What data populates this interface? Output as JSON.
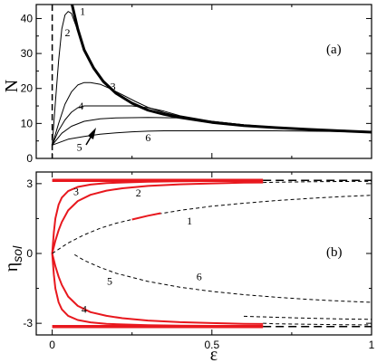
{
  "colors": {
    "red": "#e8181e",
    "black": "#000000"
  },
  "chart_data": [
    {
      "type": "line",
      "panel_label": "(a)",
      "ylabel": "N",
      "xlim": [
        -0.05,
        1.0
      ],
      "ylim": [
        0,
        44
      ],
      "xticks": [
        0,
        0.5,
        1
      ],
      "yticks": [
        0,
        10,
        20,
        30,
        40
      ],
      "ytick_labels": [
        "0",
        "10",
        "20",
        "30",
        "40"
      ],
      "vline_dashed_x": 0,
      "series": [
        {
          "label": "1",
          "thick": true,
          "x": [
            0.062,
            0.08,
            0.1,
            0.13,
            0.16,
            0.2,
            0.25,
            0.3,
            0.35,
            0.4,
            0.5,
            0.6,
            0.7,
            0.8,
            0.9,
            1.0
          ],
          "y": [
            44,
            37.0,
            31.0,
            25.8,
            22.0,
            18.6,
            15.8,
            13.8,
            12.6,
            11.7,
            10.3,
            9.4,
            8.8,
            8.3,
            7.9,
            7.5
          ]
        },
        {
          "label": "2",
          "x": [
            0,
            0.01,
            0.02,
            0.03,
            0.04,
            0.05,
            0.06,
            0.07,
            0.08,
            0.1,
            0.13,
            0.16,
            0.2,
            0.25,
            0.3,
            0.4,
            0.5,
            0.6,
            0.7,
            0.8,
            0.9,
            1.0
          ],
          "y": [
            3.8,
            16,
            28,
            37,
            41,
            42,
            41.5,
            39,
            36.5,
            31.5,
            26,
            22,
            18.6,
            15.8,
            13.8,
            11.7,
            10.3,
            9.4,
            8.8,
            8.3,
            7.9,
            7.6
          ]
        },
        {
          "label": "3",
          "x": [
            0,
            0.02,
            0.04,
            0.06,
            0.08,
            0.1,
            0.12,
            0.15,
            0.18,
            0.22,
            0.26,
            0.3,
            0.35,
            0.4,
            0.5,
            0.6,
            0.7,
            0.8,
            0.9,
            1.0
          ],
          "y": [
            3.8,
            10,
            15.5,
            19,
            21,
            21.7,
            21.7,
            21.2,
            20,
            18.2,
            16.3,
            14.6,
            13.1,
            12.0,
            10.5,
            9.5,
            8.8,
            8.3,
            7.9,
            7.6
          ]
        },
        {
          "label": "4",
          "x": [
            0,
            0.02,
            0.04,
            0.06,
            0.08,
            0.1,
            0.15,
            0.2,
            0.25,
            0.3,
            0.35,
            0.4,
            0.5,
            0.6,
            0.7,
            0.8,
            0.9,
            1.0
          ],
          "y": [
            3.8,
            8,
            11,
            13.2,
            14.5,
            15,
            15,
            15,
            15,
            14.5,
            13.5,
            12.2,
            10.6,
            9.6,
            8.9,
            8.4,
            8.0,
            7.7
          ]
        },
        {
          "label": "5",
          "x": [
            0,
            0.03,
            0.06,
            0.1,
            0.15,
            0.2,
            0.3,
            0.4,
            0.5,
            0.6,
            0.7,
            0.8,
            0.9,
            1.0
          ],
          "y": [
            3.8,
            7.2,
            9.2,
            10.6,
            11.3,
            11.6,
            11.7,
            11.6,
            10.6,
            9.6,
            8.9,
            8.4,
            8.0,
            7.7
          ]
        },
        {
          "label": "6",
          "x": [
            0,
            0.05,
            0.1,
            0.15,
            0.2,
            0.25,
            0.3,
            0.35,
            0.4,
            0.5,
            0.6,
            0.7,
            0.8,
            0.9,
            1.0
          ],
          "y": [
            3.8,
            5.5,
            6.3,
            6.9,
            7.3,
            7.6,
            7.8,
            7.9,
            7.9,
            7.9,
            7.9,
            7.9,
            7.8,
            7.7,
            7.6
          ]
        }
      ],
      "annotations": [
        {
          "text": "1",
          "x": 0.095,
          "y": 41
        },
        {
          "text": "2",
          "x": 0.048,
          "y": 35
        },
        {
          "text": "3",
          "x": 0.19,
          "y": 19.5
        },
        {
          "text": "4",
          "x": 0.09,
          "y": 14
        },
        {
          "text": "5",
          "x": 0.085,
          "y": 2.2
        },
        {
          "text": "6",
          "x": 0.3,
          "y": 4.9
        }
      ]
    },
    {
      "type": "line",
      "panel_label": "(b)",
      "ylabel": "η_sol",
      "xlabel": "ε",
      "xlim": [
        -0.05,
        1.0
      ],
      "ylim": [
        -3.5,
        3.5
      ],
      "xticks": [
        0,
        0.5,
        1
      ],
      "xtick_labels": [
        "0",
        "0.5",
        "1"
      ],
      "yticks": [
        -3,
        0,
        3
      ],
      "ytick_labels": [
        "-3",
        "0",
        "3"
      ],
      "series": [
        {
          "label": "top-red-line",
          "color": "red",
          "width": 3.5,
          "x": [
            0,
            0.66
          ],
          "y": [
            3.14,
            3.14
          ]
        },
        {
          "label": "top-dashed-line",
          "dashed": true,
          "width": 1.5,
          "x": [
            0.66,
            1.0
          ],
          "y": [
            3.14,
            3.14
          ]
        },
        {
          "label": "bottom-red-line",
          "color": "red",
          "width": 3.5,
          "x": [
            0,
            0.66
          ],
          "y": [
            -3.14,
            -3.14
          ]
        },
        {
          "label": "bottom-dashed-line",
          "dashed": true,
          "width": 1.5,
          "x": [
            0.66,
            1.0
          ],
          "y": [
            -3.14,
            -3.14
          ]
        },
        {
          "label": "3",
          "color": "red",
          "width": 2,
          "x": [
            0,
            0.005,
            0.01,
            0.02,
            0.03,
            0.05,
            0.08,
            0.12,
            0.17,
            0.22,
            0.3,
            0.4,
            0.5,
            0.6,
            0.66
          ],
          "y": [
            0,
            0.9,
            1.5,
            2.1,
            2.4,
            2.68,
            2.86,
            2.96,
            3.02,
            3.05,
            3.08,
            3.1,
            3.11,
            3.12,
            3.12
          ]
        },
        {
          "label": "2",
          "color": "red",
          "width": 2,
          "x": [
            0,
            0.01,
            0.02,
            0.03,
            0.05,
            0.08,
            0.12,
            0.17,
            0.22,
            0.3,
            0.4,
            0.5,
            0.6,
            0.66
          ],
          "y": [
            0,
            0.55,
            1.0,
            1.35,
            1.85,
            2.25,
            2.52,
            2.7,
            2.8,
            2.9,
            2.97,
            3.01,
            3.04,
            3.05
          ]
        },
        {
          "label": "3-lower",
          "color": "red",
          "width": 2,
          "x": [
            0,
            0.005,
            0.01,
            0.02,
            0.03,
            0.05,
            0.08,
            0.12,
            0.17,
            0.22,
            0.3,
            0.4,
            0.5,
            0.6,
            0.66
          ],
          "y": [
            0,
            -0.9,
            -1.5,
            -2.1,
            -2.4,
            -2.68,
            -2.86,
            -2.96,
            -3.02,
            -3.05,
            -3.08,
            -3.1,
            -3.11,
            -3.12,
            -3.12
          ]
        },
        {
          "label": "5",
          "color": "red",
          "width": 2,
          "x": [
            0,
            0.01,
            0.02,
            0.03,
            0.05,
            0.08,
            0.12,
            0.17,
            0.22,
            0.3,
            0.4,
            0.5,
            0.6,
            0.66
          ],
          "y": [
            0,
            -0.55,
            -1.0,
            -1.35,
            -1.85,
            -2.25,
            -2.52,
            -2.68,
            -2.78,
            -2.88,
            -2.95,
            -2.99,
            -3.02,
            -3.03
          ]
        },
        {
          "label": "1",
          "dashed": true,
          "width": 1,
          "x": [
            0,
            0.05,
            0.1,
            0.15,
            0.2,
            0.3,
            0.4,
            0.5,
            0.6,
            0.7,
            0.8,
            0.9,
            1.0
          ],
          "y": [
            0,
            0.45,
            0.8,
            1.08,
            1.3,
            1.62,
            1.85,
            2.03,
            2.16,
            2.27,
            2.36,
            2.44,
            2.5
          ]
        },
        {
          "label": "1-red-segment",
          "color": "red",
          "width": 2,
          "x": [
            0.25,
            0.3,
            0.34
          ],
          "y": [
            1.46,
            1.62,
            1.73
          ]
        },
        {
          "label": "6",
          "dashed": true,
          "width": 1,
          "x": [
            0.07,
            0.1,
            0.15,
            0.2,
            0.3,
            0.4,
            0.5,
            0.6,
            0.7,
            0.8,
            0.9,
            1.0
          ],
          "y": [
            -0.05,
            -0.3,
            -0.6,
            -0.85,
            -1.2,
            -1.45,
            -1.63,
            -1.77,
            -1.88,
            -1.97,
            -2.04,
            -2.1
          ]
        },
        {
          "label": "2-dashed-continuation",
          "dashed": true,
          "width": 1,
          "x": [
            0.66,
            0.7,
            0.8,
            0.9,
            1.0
          ],
          "y": [
            3.05,
            3.06,
            3.08,
            3.09,
            3.1
          ]
        },
        {
          "label": "5-dashed-continuation",
          "dashed": true,
          "width": 1,
          "x": [
            0.6,
            0.7,
            0.8,
            0.9,
            1.0
          ],
          "y": [
            -2.7,
            -2.74,
            -2.78,
            -2.81,
            -2.83
          ]
        },
        {
          "label": "4-dashed-continuation",
          "dashed": true,
          "width": 1,
          "x": [
            0.66,
            0.7,
            0.8,
            0.9,
            1.0
          ],
          "y": [
            -3.0,
            -3.02,
            -3.04,
            -3.06,
            -3.07
          ]
        }
      ],
      "annotations": [
        {
          "text": "3",
          "x": 0.075,
          "y": 2.5
        },
        {
          "text": "2",
          "x": 0.27,
          "y": 2.45
        },
        {
          "text": "1",
          "x": 0.43,
          "y": 1.25
        },
        {
          "text": "5",
          "x": 0.18,
          "y": -1.35
        },
        {
          "text": "6",
          "x": 0.46,
          "y": -1.15
        },
        {
          "text": "4",
          "x": 0.1,
          "y": -2.55
        }
      ]
    }
  ]
}
